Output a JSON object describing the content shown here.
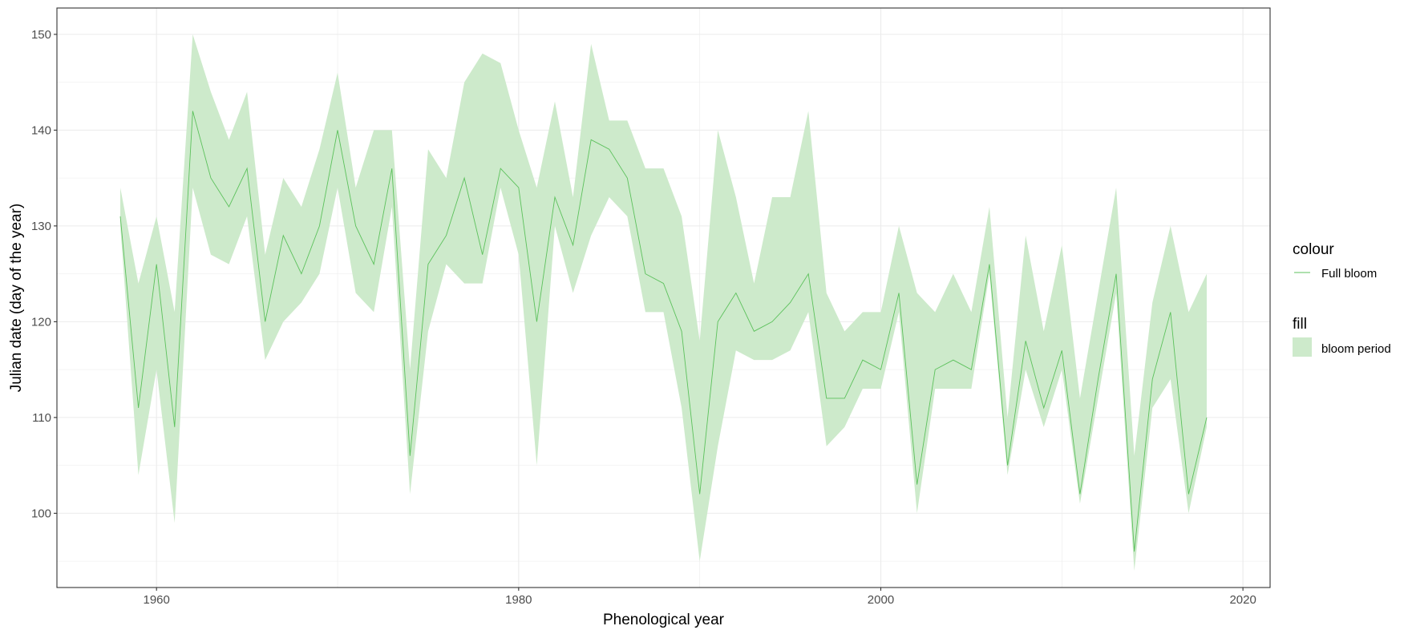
{
  "chart_data": {
    "type": "area",
    "title": "",
    "xlabel": "Phenological year",
    "ylabel": "Julian date (day of the year)",
    "xlim": [
      1954.5,
      2021.5
    ],
    "ylim": [
      92.25,
      152.75
    ],
    "x_ticks": [
      1960,
      1980,
      2000,
      2020
    ],
    "y_ticks": [
      100,
      110,
      120,
      130,
      140,
      150
    ],
    "grid": true,
    "legend_position": "right",
    "colors": {
      "line": "#5cc15c",
      "ribbon": "#cdeacb",
      "grid": "#ebebeb",
      "panel_border": "#333333"
    },
    "legends": [
      {
        "title": "colour",
        "items": [
          {
            "label": "Full bloom",
            "kind": "line"
          }
        ]
      },
      {
        "title": "fill",
        "items": [
          {
            "label": "bloom period",
            "kind": "fill"
          }
        ]
      }
    ],
    "x": [
      1958,
      1959,
      1960,
      1961,
      1962,
      1963,
      1964,
      1965,
      1966,
      1967,
      1968,
      1969,
      1970,
      1971,
      1972,
      1973,
      1974,
      1975,
      1976,
      1977,
      1978,
      1979,
      1980,
      1981,
      1982,
      1983,
      1984,
      1985,
      1986,
      1987,
      1988,
      1989,
      1990,
      1991,
      1992,
      1993,
      1994,
      1995,
      1996,
      1997,
      1998,
      1999,
      2000,
      2001,
      2002,
      2003,
      2004,
      2005,
      2006,
      2007,
      2008,
      2009,
      2010,
      2011,
      2012,
      2013,
      2014,
      2015,
      2016,
      2017,
      2018
    ],
    "series": [
      {
        "name": "Full bloom",
        "kind": "line",
        "values": [
          131,
          111,
          126,
          109,
          142,
          135,
          132,
          136,
          120,
          129,
          125,
          130,
          140,
          130,
          126,
          136,
          106,
          126,
          129,
          135,
          127,
          136,
          134,
          120,
          133,
          128,
          139,
          138,
          135,
          125,
          124,
          119,
          102,
          120,
          123,
          119,
          120,
          122,
          125,
          112,
          112,
          116,
          115,
          123,
          103,
          115,
          116,
          115,
          126,
          105,
          118,
          111,
          117,
          102,
          114,
          125,
          96,
          114,
          121,
          102,
          110
        ]
      },
      {
        "name": "bloom period",
        "kind": "ribbon",
        "ymin": [
          130,
          104,
          115,
          99,
          134,
          127,
          126,
          131,
          116,
          120,
          122,
          125,
          134,
          123,
          121,
          132,
          102,
          119,
          126,
          124,
          124,
          134,
          127,
          105,
          130,
          123,
          129,
          133,
          131,
          121,
          121,
          111,
          95,
          107,
          117,
          116,
          116,
          117,
          121,
          107,
          109,
          113,
          113,
          121,
          100,
          113,
          113,
          113,
          125,
          104,
          115,
          109,
          115,
          101,
          112,
          123,
          94,
          111,
          114,
          100,
          109
        ],
        "ymax": [
          134,
          124,
          131,
          121,
          150,
          144,
          139,
          144,
          127,
          135,
          132,
          138,
          146,
          134,
          140,
          140,
          115,
          138,
          135,
          145,
          148,
          147,
          140,
          134,
          143,
          133,
          149,
          141,
          141,
          136,
          136,
          131,
          118,
          140,
          133,
          124,
          133,
          133,
          142,
          123,
          119,
          121,
          121,
          130,
          123,
          121,
          125,
          121,
          132,
          110,
          129,
          119,
          128,
          112,
          123,
          134,
          106,
          122,
          130,
          121,
          125
        ]
      }
    ]
  }
}
